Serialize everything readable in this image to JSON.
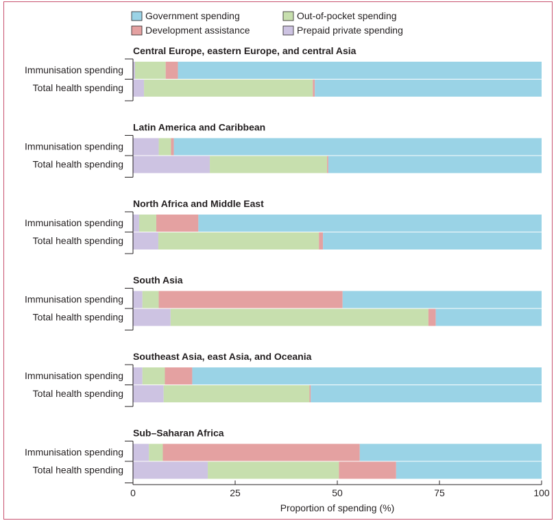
{
  "chart_data": {
    "type": "bar",
    "stacked": true,
    "orientation": "horizontal",
    "xlabel": "Proportion of spending (%)",
    "xlim": [
      0,
      100
    ],
    "xticks": [
      0,
      25,
      50,
      75,
      100
    ],
    "grid": false,
    "legend_position": "top",
    "series": [
      {
        "key": "prepaid",
        "name": "Prepaid private spending",
        "color": "#cdc3e2"
      },
      {
        "key": "oop",
        "name": "Out-of-pocket spending",
        "color": "#c7dfae"
      },
      {
        "key": "dah",
        "name": "Development assistance",
        "color": "#e4a1a1"
      },
      {
        "key": "gov",
        "name": "Government spending",
        "color": "#9ad3e6"
      }
    ],
    "legend_order": [
      "gov",
      "oop",
      "dah",
      "prepaid"
    ],
    "row_labels": [
      "Immunisation spending",
      "Total health spending"
    ],
    "panels": [
      {
        "title": "Central Europe, eastern Europe, and central Asia",
        "rows": [
          {
            "prepaid": 0.5,
            "oop": 7.5,
            "dah": 3.0,
            "gov": 89.0
          },
          {
            "prepaid": 2.7,
            "oop": 41.3,
            "dah": 0.5,
            "gov": 55.5
          }
        ]
      },
      {
        "title": "Latin America and Caribbean",
        "rows": [
          {
            "prepaid": 6.3,
            "oop": 3.0,
            "dah": 0.7,
            "gov": 90.0
          },
          {
            "prepaid": 18.8,
            "oop": 28.7,
            "dah": 0.3,
            "gov": 52.2
          }
        ]
      },
      {
        "title": "North Africa and Middle East",
        "rows": [
          {
            "prepaid": 1.5,
            "oop": 4.2,
            "dah": 10.3,
            "gov": 84.0
          },
          {
            "prepaid": 6.2,
            "oop": 39.3,
            "dah": 1.0,
            "gov": 53.5
          }
        ]
      },
      {
        "title": "South Asia",
        "rows": [
          {
            "prepaid": 2.3,
            "oop": 4.0,
            "dah": 45.0,
            "gov": 48.7
          },
          {
            "prepaid": 9.2,
            "oop": 63.1,
            "dah": 1.8,
            "gov": 25.9
          }
        ]
      },
      {
        "title": "Southeast Asia, east Asia, and Oceania",
        "rows": [
          {
            "prepaid": 2.3,
            "oop": 5.5,
            "dah": 6.7,
            "gov": 85.5
          },
          {
            "prepaid": 7.5,
            "oop": 35.7,
            "dah": 0.3,
            "gov": 56.5
          }
        ]
      },
      {
        "title": "Sub–Saharan Africa",
        "rows": [
          {
            "prepaid": 3.9,
            "oop": 3.4,
            "dah": 48.2,
            "gov": 44.5
          },
          {
            "prepaid": 18.3,
            "oop": 32.1,
            "dah": 14.0,
            "gov": 35.6
          }
        ]
      }
    ]
  }
}
